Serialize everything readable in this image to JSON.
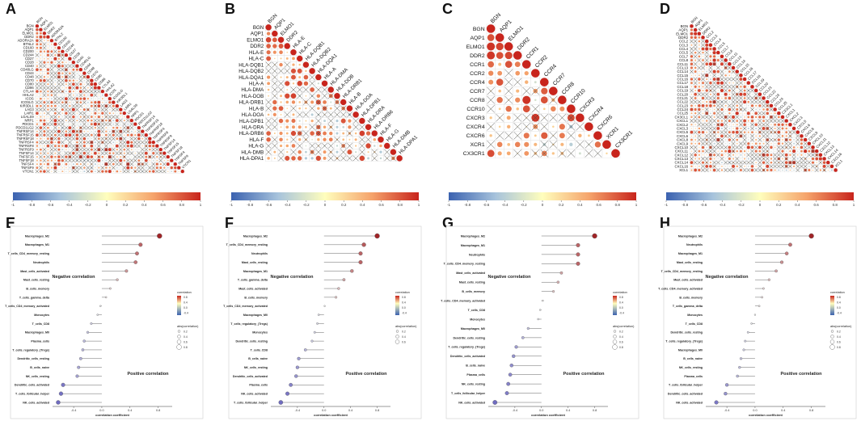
{
  "panel_letters": [
    "A",
    "B",
    "C",
    "D",
    "E",
    "F",
    "G",
    "H"
  ],
  "palette": {
    "neg": "#3b62b0",
    "neg_light": "#a7c3dc",
    "mid": "#fffebd",
    "pos_light": "#f5a36b",
    "pos": "#c8241c",
    "cross": "#444444",
    "lolli_neg": "#6f6bc0",
    "lolli_pos": "#a02427"
  },
  "colorbar_ticks": [
    "-1",
    "-0.8",
    "-0.6",
    "-0.4",
    "-0.2",
    "0",
    "0.2",
    "0.4",
    "0.6",
    "0.8",
    "1"
  ],
  "chart_data": [
    {
      "panel": "A",
      "type": "heatmap",
      "title": "",
      "axis_labels": [
        "BGN",
        "AQP1",
        "ELMO1",
        "DDR2",
        "ADORA2A",
        "BTNL2",
        "CD160",
        "CD200",
        "CD244",
        "CD27",
        "CD28",
        "CD40",
        "CD40LG",
        "CD44",
        "CD48",
        "CD70",
        "CD80",
        "CD86",
        "CTLA4",
        "HHLA2",
        "ICOS",
        "ICOSLG",
        "KIR3DL1",
        "LAG3",
        "LAIR1",
        "LGALS9",
        "NRP1",
        "PDCD1",
        "PDCD1LG2",
        "TNFRSF14",
        "TNFRSF15",
        "TNFRSF18",
        "TNFRSF4",
        "TNFRSF8",
        "TNFRSF9",
        "TNFSF14",
        "TNFSF15",
        "TNFSF18",
        "TNFSF4",
        "TNFSF9",
        "VTCN1"
      ]
    },
    {
      "panel": "B",
      "type": "heatmap",
      "title": "",
      "axis_labels": [
        "BGN",
        "AQP1",
        "ELMO1",
        "DDR2",
        "HLA-E",
        "HLA-C",
        "HLA-DQB1",
        "HLA-DQB2",
        "HLA-DQA1",
        "HLA-A",
        "HLA-DMA",
        "HLA-DOB",
        "HLA-DRB1",
        "HLA-B",
        "HLA-DOA",
        "HLA-DPB1",
        "HLA-DRA",
        "HLA-DRB6",
        "HLA-F",
        "HLA-G",
        "HLA-DMB",
        "HLA-DPA1"
      ]
    },
    {
      "panel": "C",
      "type": "heatmap",
      "title": "",
      "axis_labels": [
        "BGN",
        "AQP1",
        "ELMO1",
        "DDR2",
        "CCR1",
        "CCR2",
        "CCR4",
        "CCR7",
        "CCR8",
        "CCR10",
        "CXCR3",
        "CXCR4",
        "CXCR6",
        "XCR1",
        "CX3CR1"
      ]
    },
    {
      "panel": "D",
      "type": "heatmap",
      "title": "",
      "axis_labels": [
        "BGN",
        "AQP1",
        "ELMO1",
        "DDR2",
        "CCL2",
        "CCL3",
        "CCL4",
        "CCL5",
        "CCL7",
        "CCL8",
        "CCL11",
        "CCL13",
        "CCL14",
        "CCL15",
        "CCL16",
        "CCL17",
        "CCL18",
        "CCL19",
        "CCL20",
        "CCL21",
        "CCL22",
        "CCL23",
        "CCL24",
        "CCL25",
        "CX3CL1",
        "CXCL1",
        "CXCL2",
        "CXCL3",
        "CXCL5",
        "CXCL6",
        "CXCL8",
        "CXCL9",
        "CXCL10",
        "CXCL11",
        "CXCL12",
        "CXCL13",
        "CXCL14",
        "CXCL16",
        "XCL1"
      ]
    },
    {
      "panel": "E",
      "type": "scatter",
      "xlabel": "correlation coefficient",
      "xticks": [
        "-0.4",
        "0.0",
        "0.4",
        "0.8"
      ],
      "xlim": [
        -0.7,
        1.0
      ],
      "neg_text": "Negative correlation",
      "pos_text": "Positive correlation",
      "legend_title1": "correlation",
      "legend_title2": "abs(correlation)",
      "legend_color_ticks": [
        "0.8",
        "0.4",
        "0.0",
        "-0.4"
      ],
      "legend_size_ticks": [
        "0.2",
        "0.4",
        "0.6",
        "0.8"
      ],
      "categories": [
        "Macrophages_M2",
        "Macrophages_M1",
        "T_cells_CD4_memory_resting",
        "Neutrophils",
        "Mast_cells_activated",
        "Mast_cells_resting",
        "B_cells_memory",
        "T_cells_gamma_delta",
        "T_cells_CD4_memory_activated",
        "Monocytes",
        "T_cells_CD8",
        "Macrophages_M0",
        "Plasma_cells",
        "T_cells_regulatory_(Tregs)",
        "Dendritic_cells_resting",
        "B_cells_naive",
        "NK_cells_resting",
        "Dendritic_cells_activated",
        "T_cells_follicular_helper",
        "NK_cells_activated"
      ],
      "values": [
        0.82,
        0.55,
        0.5,
        0.48,
        0.35,
        0.22,
        0.12,
        0.06,
        -0.02,
        -0.06,
        -0.15,
        -0.2,
        -0.25,
        -0.27,
        -0.3,
        -0.33,
        -0.35,
        -0.55,
        -0.58,
        -0.62
      ]
    },
    {
      "panel": "F",
      "type": "scatter",
      "xlabel": "correlation coefficient",
      "xticks": [
        "-0.4",
        "0.0",
        "0.4",
        "0.8"
      ],
      "xlim": [
        -0.8,
        1.0
      ],
      "neg_text": "Negative correlation",
      "pos_text": "Positive correlation",
      "legend_title1": "correlation",
      "legend_title2": "abs(correlation)",
      "legend_color_ticks": [
        "0.8",
        "0.4",
        "0.0",
        "-0.4"
      ],
      "legend_size_ticks": [
        "0.2",
        "0.4",
        "0.6"
      ],
      "categories": [
        "Macrophages_M2",
        "T_cells_CD4_memory_resting",
        "Neutrophils",
        "Mast_cells_resting",
        "Macrophages_M1",
        "T_cells_gamma_delta",
        "Mast_cells_activated",
        "B_cells_memory",
        "T_cells_CD4_memory_activated",
        "Macrophages_M0",
        "T_cells_regulatory_(Tregs)",
        "Monocytes",
        "Dendritic_cells_resting",
        "T_cells_CD8",
        "B_cells_naive",
        "NK_cells_resting",
        "Dendritic_cells_activated",
        "Plasma_cells",
        "NK_cells_activated",
        "T_cells_follicular_helper"
      ],
      "values": [
        0.8,
        0.6,
        0.55,
        0.55,
        0.42,
        0.3,
        0.22,
        0.18,
        0.01,
        -0.08,
        -0.1,
        -0.14,
        -0.18,
        -0.28,
        -0.38,
        -0.4,
        -0.42,
        -0.5,
        -0.55,
        -0.65
      ]
    },
    {
      "panel": "G",
      "type": "scatter",
      "xlabel": "correlation coefficient",
      "xticks": [
        "-0.4",
        "0.0",
        "0.4",
        "0.8"
      ],
      "xlim": [
        -0.8,
        1.0
      ],
      "neg_text": "Negative correlation",
      "pos_text": "Positive correlation",
      "legend_title1": "correlation",
      "legend_title2": "abs(correlation)",
      "legend_color_ticks": [
        "0.8",
        "0.4",
        "0.0",
        "-0.4"
      ],
      "legend_size_ticks": [
        "0.2",
        "0.4",
        "0.6",
        "0.8"
      ],
      "categories": [
        "Macrophages_M2",
        "Macrophages_M1",
        "Neutrophils",
        "T_cells_CD4_memory_resting",
        "Mast_cells_activated",
        "Mast_cells_resting",
        "B_cells_memory",
        "T_cells_CD4_memory_activated",
        "T_cells_CD8",
        "Monocytes",
        "Macrophages_M0",
        "Dendritic_cells_resting",
        "T_cells_regulatory_(Tregs)",
        "Dendritic_cells_activated",
        "B_cells_naive",
        "Plasma_cells",
        "NK_cells_resting",
        "T_cells_follicular_helper",
        "NK_cells_activated"
      ],
      "values": [
        0.8,
        0.55,
        0.55,
        0.55,
        0.3,
        0.25,
        0.18,
        0.02,
        -0.02,
        -0.05,
        -0.2,
        -0.28,
        -0.38,
        -0.42,
        -0.45,
        -0.47,
        -0.5,
        -0.52,
        -0.7
      ]
    },
    {
      "panel": "H",
      "type": "scatter",
      "xlabel": "correlation coefficient",
      "xticks": [
        "-0.4",
        "0.0",
        "0.4",
        "0.8"
      ],
      "xlim": [
        -0.7,
        1.0
      ],
      "neg_text": "Negative correlation",
      "pos_text": "Positive correlation",
      "legend_title1": "correlation",
      "legend_title2": "abs(correlation)",
      "legend_color_ticks": [
        "0.8",
        "0.4",
        "0.0",
        "-0.4"
      ],
      "legend_size_ticks": [
        "0.2",
        "0.4",
        "0.6",
        "0.8"
      ],
      "categories": [
        "Macrophages_M2",
        "Neutrophils",
        "Macrophages_M1",
        "Mast_cells_resting",
        "T_cells_CD4_memory_resting",
        "Mast_cells_activated",
        "T_cells_CD4_memory_activated",
        "B_cells_memory",
        "T_cells_gamma_delta",
        "Monocytes",
        "T_cells_CD8",
        "Dendritic_cells_resting",
        "T_cells_regulatory_(Tregs)",
        "Macrophages_M0",
        "B_cells_naive",
        "NK_cells_resting",
        "Plasma_cells",
        "T_cells_follicular_helper",
        "Dendritic_cells_activated",
        "NK_cells_activated"
      ],
      "values": [
        0.8,
        0.5,
        0.45,
        0.38,
        0.3,
        0.2,
        0.12,
        0.1,
        0.06,
        0.0,
        -0.05,
        -0.1,
        -0.14,
        -0.16,
        -0.2,
        -0.22,
        -0.25,
        -0.4,
        -0.42,
        -0.55
      ]
    }
  ]
}
